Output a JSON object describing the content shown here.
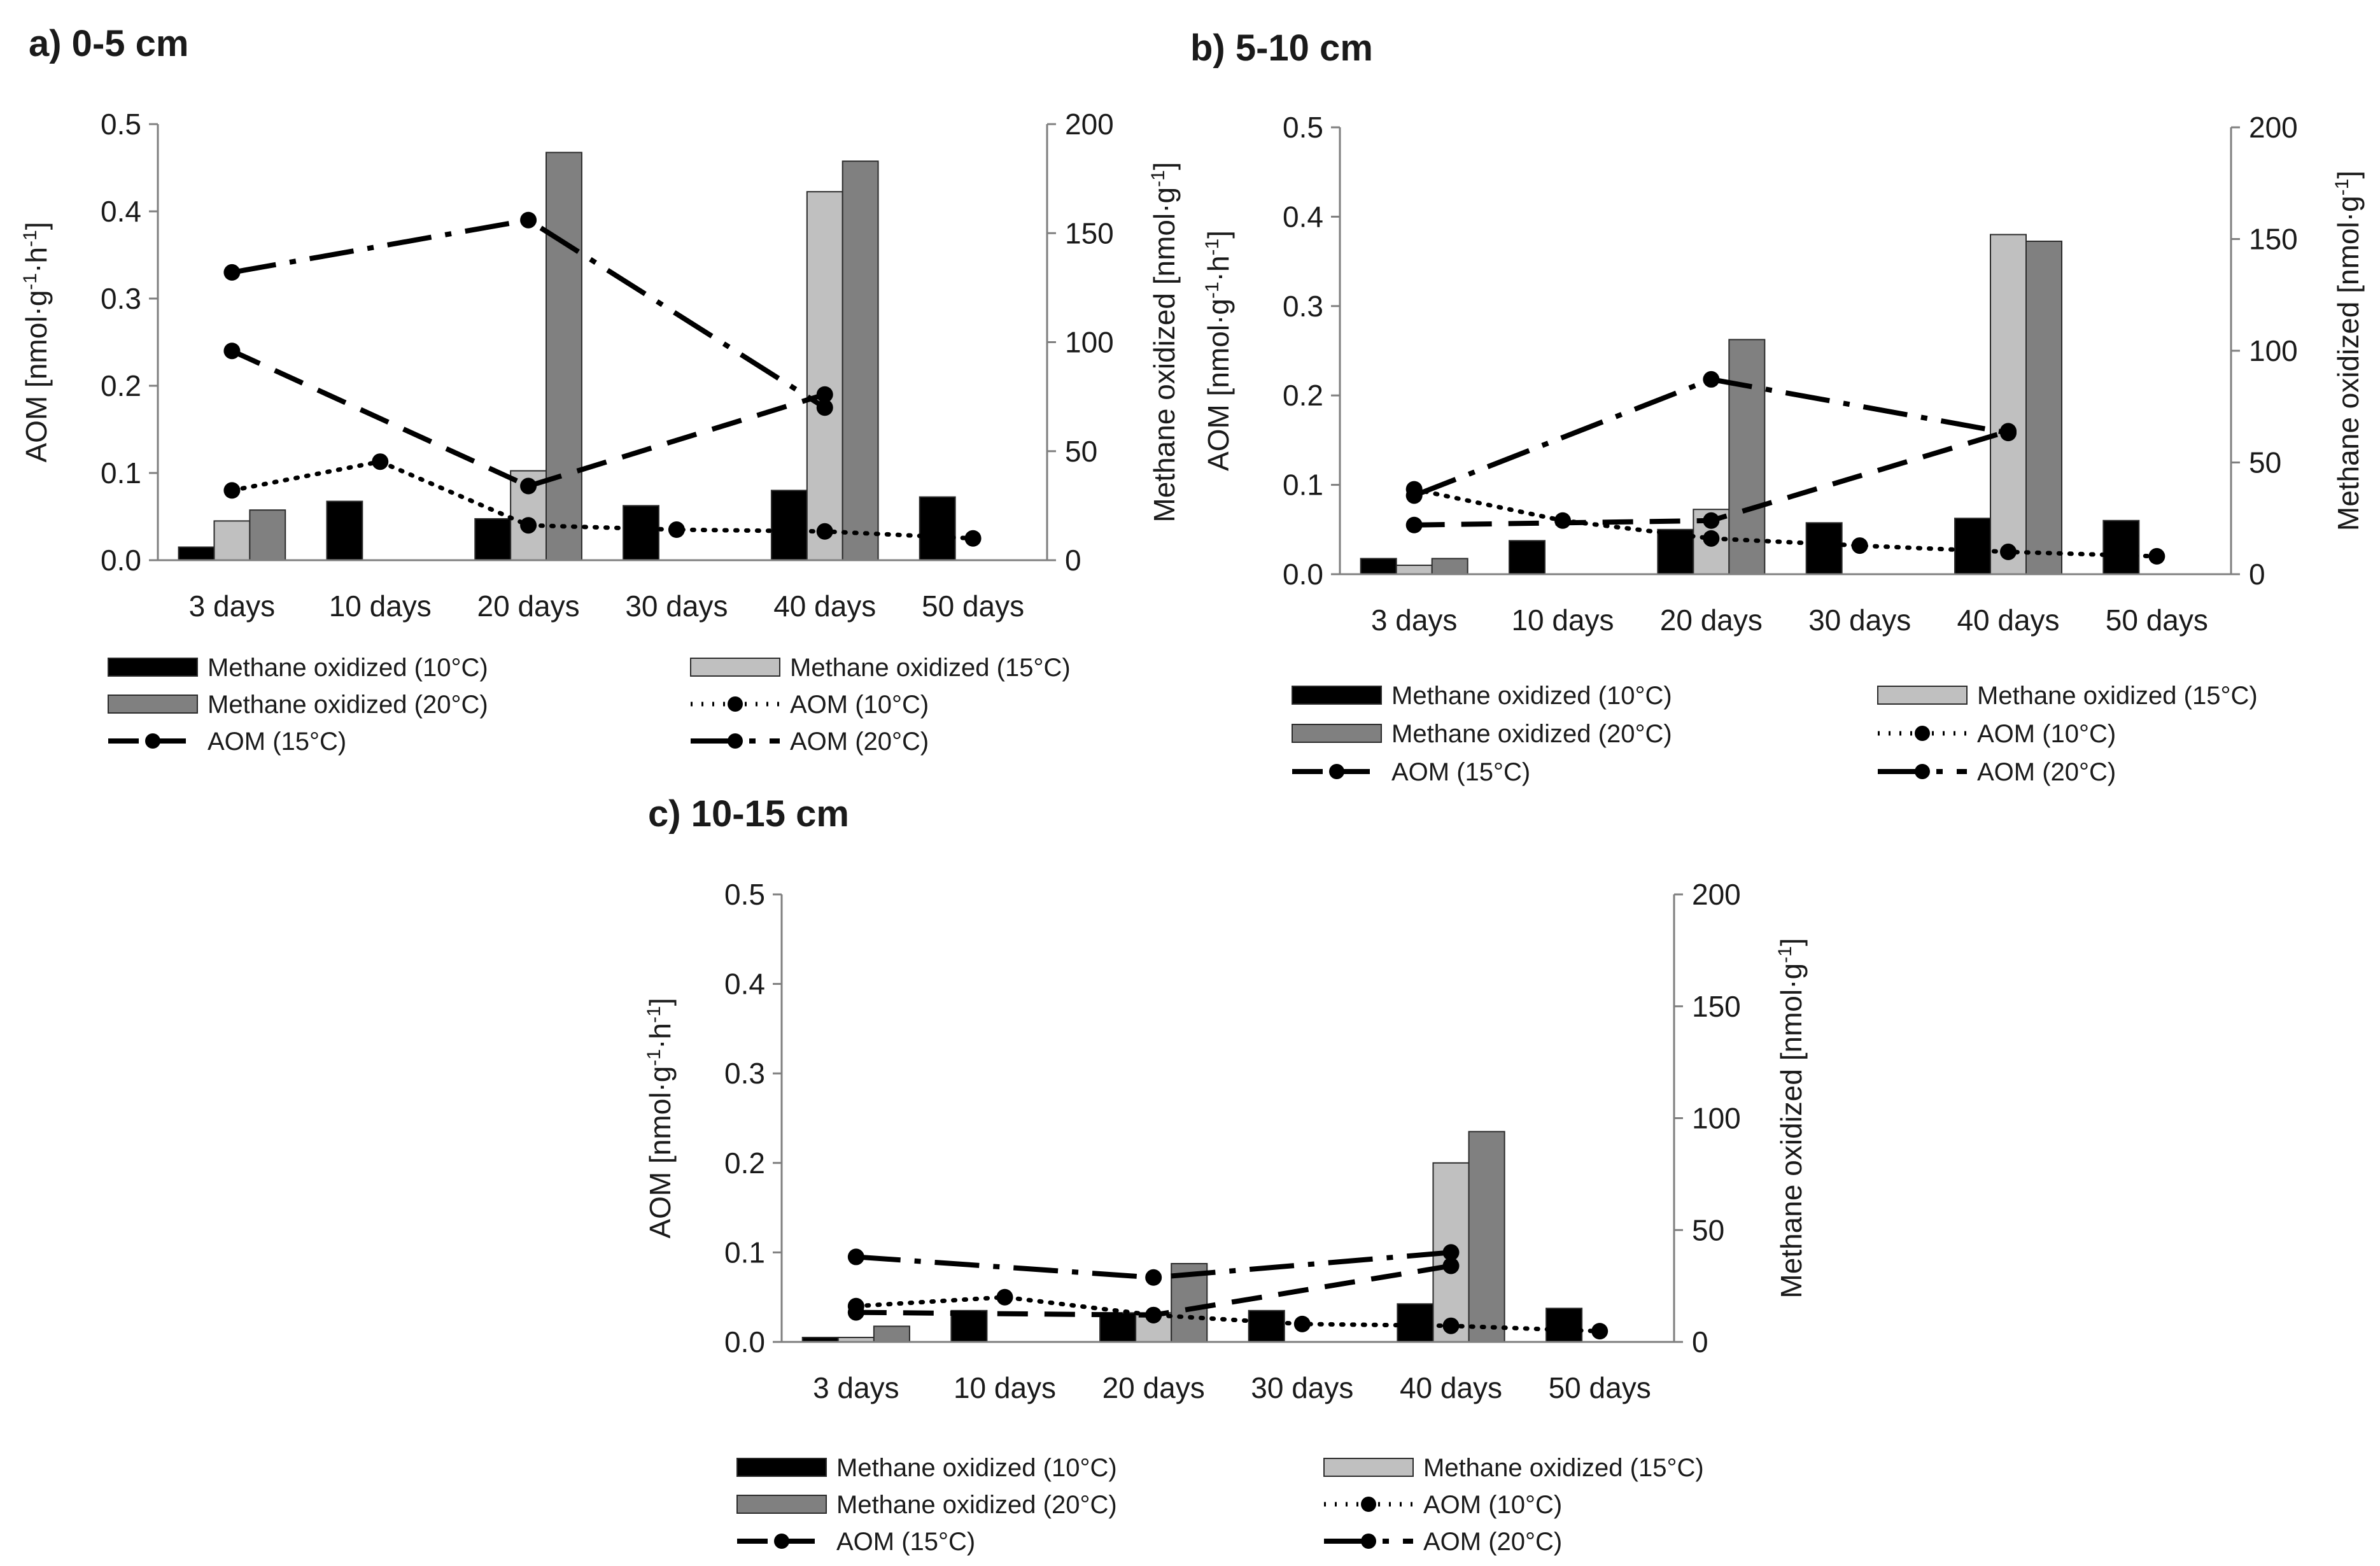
{
  "figure": {
    "legend_labels": {
      "mo10": "Methane oxidized (10°C)",
      "mo15": "Methane oxidized (15°C)",
      "mo20": "Methane oxidized (20°C)",
      "aom10": "AOM (10°C)",
      "aom15": "AOM (15°C)",
      "aom20": "AOM (20°C)"
    },
    "colors": {
      "mo10": "#000000",
      "mo15": "#c0c0c0",
      "mo20": "#808080",
      "line": "#000000"
    }
  },
  "chart_data": [
    {
      "type": "bar",
      "title": "a) 0-5 cm",
      "categories": [
        "3 days",
        "10 days",
        "20 days",
        "30 days",
        "40 days",
        "50 days"
      ],
      "ylabel_left": "AOM [nmol·g⁻¹·h⁻¹]",
      "ylabel_right": "Methane oxidized [nmol·g⁻¹]",
      "ylim_left": [
        0,
        0.5
      ],
      "ylim_right": [
        0,
        200
      ],
      "yticks_left": [
        "0.0",
        "0.1",
        "0.2",
        "0.3",
        "0.4",
        "0.5"
      ],
      "yticks_right": [
        "0",
        "50",
        "100",
        "150",
        "200"
      ],
      "bar_series": [
        {
          "name": "Methane oxidized (10°C)",
          "values": [
            6,
            27,
            19,
            25,
            32,
            29
          ]
        },
        {
          "name": "Methane oxidized (15°C)",
          "values": [
            18,
            null,
            41,
            null,
            169,
            null
          ]
        },
        {
          "name": "Methane oxidized (20°C)",
          "values": [
            23,
            null,
            187,
            null,
            183,
            null
          ]
        }
      ],
      "line_series": [
        {
          "name": "AOM (10°C)",
          "values": [
            0.08,
            0.113,
            0.04,
            0.035,
            0.033,
            0.025
          ]
        },
        {
          "name": "AOM (15°C)",
          "values": [
            0.24,
            null,
            0.085,
            null,
            0.19,
            null
          ]
        },
        {
          "name": "AOM (20°C)",
          "values": [
            0.33,
            null,
            0.39,
            null,
            0.175,
            null
          ]
        }
      ]
    },
    {
      "type": "bar",
      "title": "b) 5-10 cm",
      "categories": [
        "3 days",
        "10 days",
        "20 days",
        "30 days",
        "40 days",
        "50 days"
      ],
      "ylabel_left": "AOM [nmol·g⁻¹·h⁻¹]",
      "ylabel_right": "Methane oxidized [nmol·g⁻¹]",
      "ylim_left": [
        0,
        0.5
      ],
      "ylim_right": [
        0,
        200
      ],
      "yticks_left": [
        "0.0",
        "0.1",
        "0.2",
        "0.3",
        "0.4",
        "0.5"
      ],
      "yticks_right": [
        "0",
        "50",
        "100",
        "150",
        "200"
      ],
      "bar_series": [
        {
          "name": "Methane oxidized (10°C)",
          "values": [
            7,
            15,
            20,
            23,
            25,
            24
          ]
        },
        {
          "name": "Methane oxidized (15°C)",
          "values": [
            4,
            null,
            29,
            null,
            152,
            null
          ]
        },
        {
          "name": "Methane oxidized (20°C)",
          "values": [
            7,
            null,
            105,
            null,
            149,
            null
          ]
        }
      ],
      "line_series": [
        {
          "name": "AOM (10°C)",
          "values": [
            0.095,
            0.06,
            0.04,
            0.032,
            0.025,
            0.02
          ]
        },
        {
          "name": "AOM (15°C)",
          "values": [
            0.055,
            null,
            0.06,
            null,
            0.16,
            null
          ]
        },
        {
          "name": "AOM (20°C)",
          "values": [
            0.088,
            null,
            0.218,
            null,
            0.158,
            null
          ]
        }
      ]
    },
    {
      "type": "bar",
      "title": "c) 10-15 cm",
      "categories": [
        "3 days",
        "10 days",
        "20 days",
        "30 days",
        "40 days",
        "50 days"
      ],
      "ylabel_left": "AOM [nmol·g⁻¹·h⁻¹]",
      "ylabel_right": "Methane oxidized [nmol·g⁻¹]",
      "ylim_left": [
        0,
        0.5
      ],
      "ylim_right": [
        0,
        200
      ],
      "yticks_left": [
        "0.0",
        "0.1",
        "0.2",
        "0.3",
        "0.4",
        "0.5"
      ],
      "yticks_right": [
        "0",
        "50",
        "100",
        "150",
        "200"
      ],
      "bar_series": [
        {
          "name": "Methane oxidized (10°C)",
          "values": [
            2,
            14,
            13,
            14,
            17,
            15
          ]
        },
        {
          "name": "Methane oxidized (15°C)",
          "values": [
            2,
            null,
            13,
            null,
            80,
            null
          ]
        },
        {
          "name": "Methane oxidized (20°C)",
          "values": [
            7,
            null,
            35,
            null,
            94,
            null
          ]
        }
      ],
      "line_series": [
        {
          "name": "AOM (10°C)",
          "values": [
            0.04,
            0.05,
            0.03,
            0.02,
            0.018,
            0.012
          ]
        },
        {
          "name": "AOM (15°C)",
          "values": [
            0.033,
            null,
            0.03,
            null,
            0.085,
            null
          ]
        },
        {
          "name": "AOM (20°C)",
          "values": [
            0.095,
            null,
            0.072,
            null,
            0.1,
            null
          ]
        }
      ]
    }
  ]
}
